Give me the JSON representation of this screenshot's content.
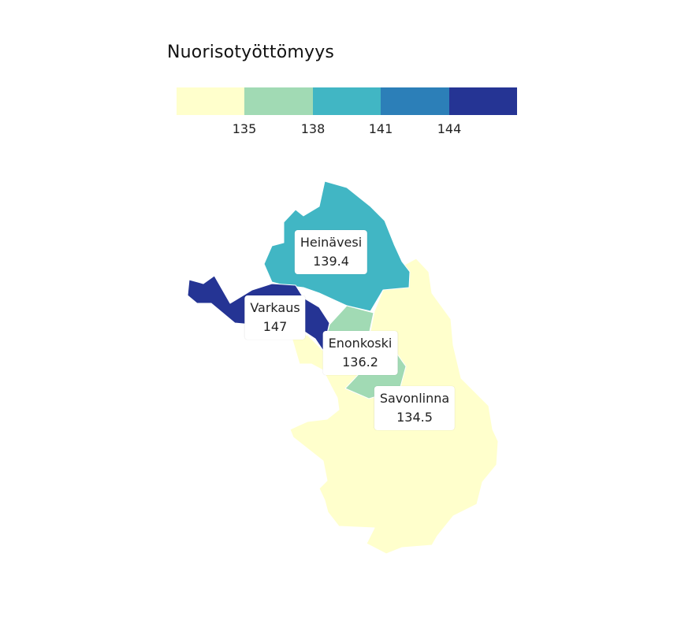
{
  "legend": {
    "title": "Nuorisotyöttömyys",
    "colors": [
      "#ffffcc",
      "#a1dab4",
      "#41b6c4",
      "#2c7fb8",
      "#253494"
    ],
    "ticks": [
      "135",
      "138",
      "141",
      "144"
    ]
  },
  "regions": [
    {
      "name": "Heinävesi",
      "value": "139.4",
      "color": "#41b6c4"
    },
    {
      "name": "Varkaus",
      "value": "147",
      "color": "#253494"
    },
    {
      "name": "Enonkoski",
      "value": "136.2",
      "color": "#a1dab4"
    },
    {
      "name": "Savonlinna",
      "value": "134.5",
      "color": "#ffffcc"
    }
  ]
}
